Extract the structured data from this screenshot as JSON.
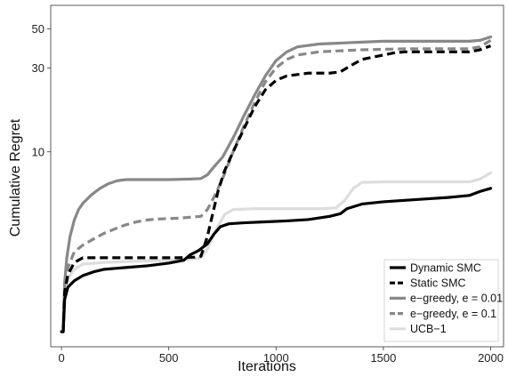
{
  "chart_data": {
    "type": "line",
    "xlabel": "Iterations",
    "ylabel": "Cumulative Regret",
    "x_scale": "linear",
    "y_scale": "log",
    "xlim": [
      -50,
      2060
    ],
    "ylim": [
      0.78,
      68
    ],
    "xticks": [
      0,
      500,
      1000,
      1500,
      2000
    ],
    "yticks": [
      10,
      30,
      50
    ],
    "grid": false,
    "legend_position": "bottom-right",
    "series": [
      {
        "name": "Dynamic SMC",
        "color": "#000000",
        "dash": "solid",
        "points": [
          [
            0,
            0.95
          ],
          [
            8,
            0.95
          ],
          [
            15,
            1.45
          ],
          [
            30,
            1.7
          ],
          [
            60,
            1.85
          ],
          [
            100,
            1.98
          ],
          [
            150,
            2.08
          ],
          [
            200,
            2.15
          ],
          [
            300,
            2.2
          ],
          [
            400,
            2.25
          ],
          [
            500,
            2.33
          ],
          [
            570,
            2.42
          ],
          [
            600,
            2.6
          ],
          [
            640,
            2.75
          ],
          [
            680,
            3.0
          ],
          [
            710,
            3.4
          ],
          [
            740,
            3.75
          ],
          [
            780,
            3.9
          ],
          [
            850,
            3.95
          ],
          [
            950,
            4.0
          ],
          [
            1050,
            4.05
          ],
          [
            1150,
            4.12
          ],
          [
            1250,
            4.3
          ],
          [
            1300,
            4.45
          ],
          [
            1330,
            4.75
          ],
          [
            1400,
            5.05
          ],
          [
            1500,
            5.2
          ],
          [
            1600,
            5.3
          ],
          [
            1700,
            5.4
          ],
          [
            1800,
            5.5
          ],
          [
            1900,
            5.65
          ],
          [
            1950,
            5.95
          ],
          [
            2000,
            6.2
          ]
        ]
      },
      {
        "name": "Static SMC",
        "color": "#000000",
        "dash": "dashed",
        "points": [
          [
            0,
            0.95
          ],
          [
            8,
            0.95
          ],
          [
            15,
            1.6
          ],
          [
            30,
            2.0
          ],
          [
            60,
            2.35
          ],
          [
            100,
            2.5
          ],
          [
            150,
            2.5
          ],
          [
            250,
            2.5
          ],
          [
            400,
            2.5
          ],
          [
            550,
            2.5
          ],
          [
            620,
            2.52
          ],
          [
            650,
            2.55
          ],
          [
            680,
            3.3
          ],
          [
            700,
            4.2
          ],
          [
            730,
            6.0
          ],
          [
            760,
            7.8
          ],
          [
            800,
            10.0
          ],
          [
            850,
            13.5
          ],
          [
            900,
            18.0
          ],
          [
            950,
            22.5
          ],
          [
            1000,
            25.5
          ],
          [
            1050,
            27.0
          ],
          [
            1150,
            28.0
          ],
          [
            1250,
            28.0
          ],
          [
            1300,
            28.5
          ],
          [
            1350,
            31.0
          ],
          [
            1400,
            33.5
          ],
          [
            1450,
            34.5
          ],
          [
            1500,
            35.5
          ],
          [
            1550,
            36.5
          ],
          [
            1600,
            37.0
          ],
          [
            1700,
            37.0
          ],
          [
            1800,
            37.0
          ],
          [
            1900,
            37.0
          ],
          [
            1950,
            38.0
          ],
          [
            2000,
            40.0
          ]
        ]
      },
      {
        "name": "e−greedy, e = 0.01",
        "color": "#888888",
        "dash": "solid",
        "points": [
          [
            0,
            0.95
          ],
          [
            8,
            0.95
          ],
          [
            15,
            1.8
          ],
          [
            25,
            2.5
          ],
          [
            40,
            3.3
          ],
          [
            60,
            4.1
          ],
          [
            80,
            4.7
          ],
          [
            100,
            5.1
          ],
          [
            140,
            5.7
          ],
          [
            180,
            6.2
          ],
          [
            220,
            6.6
          ],
          [
            260,
            6.85
          ],
          [
            300,
            6.95
          ],
          [
            400,
            6.95
          ],
          [
            500,
            6.95
          ],
          [
            600,
            7.0
          ],
          [
            650,
            7.05
          ],
          [
            680,
            7.4
          ],
          [
            710,
            8.2
          ],
          [
            750,
            9.3
          ],
          [
            800,
            12.0
          ],
          [
            850,
            16.0
          ],
          [
            900,
            21.0
          ],
          [
            950,
            27.0
          ],
          [
            1000,
            33.0
          ],
          [
            1050,
            37.0
          ],
          [
            1100,
            39.5
          ],
          [
            1200,
            41.0
          ],
          [
            1300,
            41.5
          ],
          [
            1400,
            42.0
          ],
          [
            1500,
            42.5
          ],
          [
            1700,
            42.5
          ],
          [
            1900,
            42.5
          ],
          [
            1950,
            43.0
          ],
          [
            2000,
            45.0
          ]
        ]
      },
      {
        "name": "e−greedy, e = 0.1",
        "color": "#888888",
        "dash": "dashed",
        "points": [
          [
            0,
            0.95
          ],
          [
            8,
            0.95
          ],
          [
            15,
            1.6
          ],
          [
            30,
            2.2
          ],
          [
            60,
            2.7
          ],
          [
            100,
            2.95
          ],
          [
            150,
            3.2
          ],
          [
            200,
            3.45
          ],
          [
            250,
            3.65
          ],
          [
            300,
            3.85
          ],
          [
            350,
            4.0
          ],
          [
            400,
            4.1
          ],
          [
            450,
            4.15
          ],
          [
            550,
            4.2
          ],
          [
            600,
            4.25
          ],
          [
            650,
            4.3
          ],
          [
            680,
            4.7
          ],
          [
            710,
            5.5
          ],
          [
            750,
            7.0
          ],
          [
            800,
            10.0
          ],
          [
            850,
            14.0
          ],
          [
            900,
            19.0
          ],
          [
            950,
            25.0
          ],
          [
            1000,
            30.0
          ],
          [
            1050,
            33.5
          ],
          [
            1100,
            35.5
          ],
          [
            1200,
            37.0
          ],
          [
            1300,
            37.5
          ],
          [
            1400,
            38.0
          ],
          [
            1600,
            38.5
          ],
          [
            1800,
            38.5
          ],
          [
            1900,
            38.5
          ],
          [
            1950,
            39.5
          ],
          [
            2000,
            43.0
          ]
        ]
      },
      {
        "name": "UCB−1",
        "color": "#dddddd",
        "dash": "solid",
        "points": [
          [
            0,
            0.95
          ],
          [
            8,
            0.95
          ],
          [
            15,
            1.5
          ],
          [
            30,
            1.9
          ],
          [
            60,
            2.15
          ],
          [
            100,
            2.3
          ],
          [
            200,
            2.35
          ],
          [
            300,
            2.38
          ],
          [
            400,
            2.4
          ],
          [
            500,
            2.42
          ],
          [
            600,
            2.45
          ],
          [
            650,
            2.5
          ],
          [
            680,
            2.8
          ],
          [
            720,
            3.6
          ],
          [
            760,
            4.4
          ],
          [
            800,
            4.7
          ],
          [
            900,
            4.75
          ],
          [
            1000,
            4.75
          ],
          [
            1100,
            4.75
          ],
          [
            1200,
            4.75
          ],
          [
            1280,
            4.8
          ],
          [
            1320,
            5.3
          ],
          [
            1360,
            6.2
          ],
          [
            1400,
            6.7
          ],
          [
            1500,
            6.75
          ],
          [
            1700,
            6.75
          ],
          [
            1900,
            6.75
          ],
          [
            1950,
            7.0
          ],
          [
            2000,
            7.6
          ]
        ]
      }
    ]
  }
}
